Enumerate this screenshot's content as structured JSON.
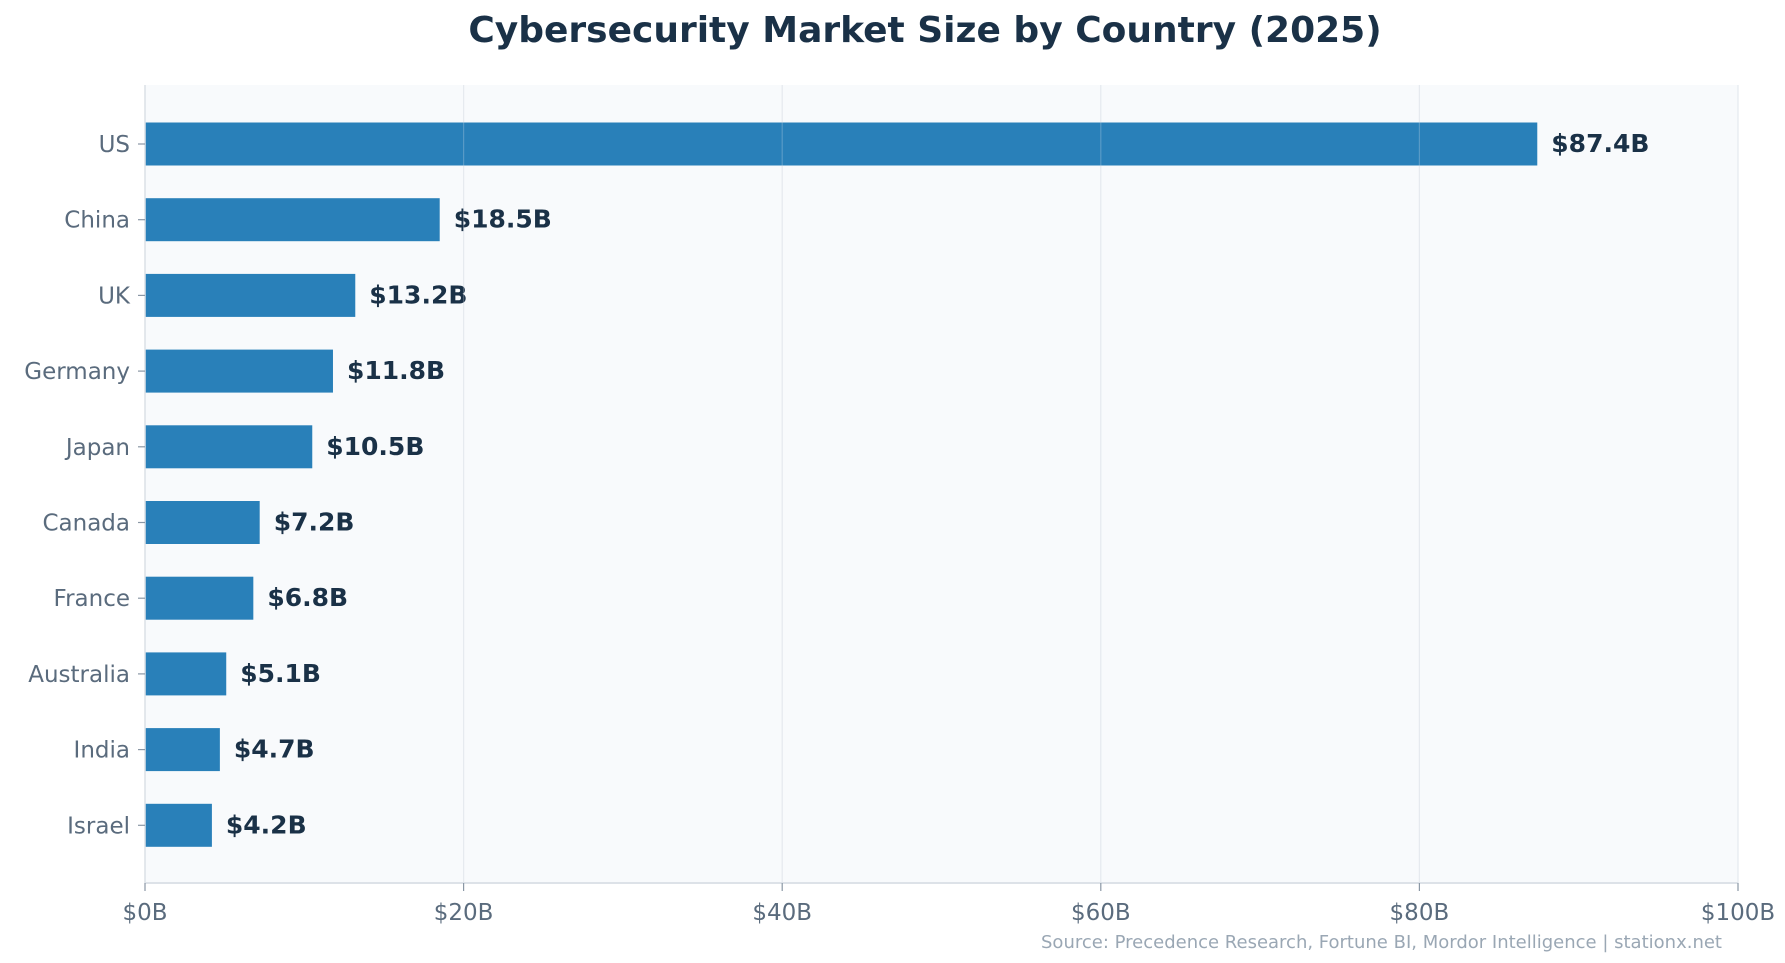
{
  "chart_data": {
    "type": "bar",
    "orientation": "horizontal",
    "title": "Cybersecurity Market Size by Country (2025)",
    "categories": [
      "US",
      "China",
      "UK",
      "Germany",
      "Japan",
      "Canada",
      "France",
      "Australia",
      "India",
      "Israel"
    ],
    "values": [
      87.4,
      18.5,
      13.2,
      11.8,
      10.5,
      7.2,
      6.8,
      5.1,
      4.7,
      4.2
    ],
    "data_labels": [
      "$87.4B",
      "$18.5B",
      "$13.2B",
      "$11.8B",
      "$10.5B",
      "$7.2B",
      "$6.8B",
      "$5.1B",
      "$4.7B",
      "$4.2B"
    ],
    "xlim": [
      0,
      100
    ],
    "x_ticks": [
      0,
      20,
      40,
      60,
      80,
      100
    ],
    "x_tick_labels": [
      "$0B",
      "$20B",
      "$40B",
      "$60B",
      "$80B",
      "$100B"
    ],
    "xlabel": "",
    "ylabel": "",
    "grid": "vertical",
    "source": "Source: Precedence Research, Fortune BI, Mordor Intelligence | stationx.net",
    "colors": {
      "bar": "#2980b9",
      "title": "#1a3147",
      "label": "#5a6b7d",
      "plot_bg": "#f8fafc",
      "source": "#9aa7b4"
    }
  }
}
